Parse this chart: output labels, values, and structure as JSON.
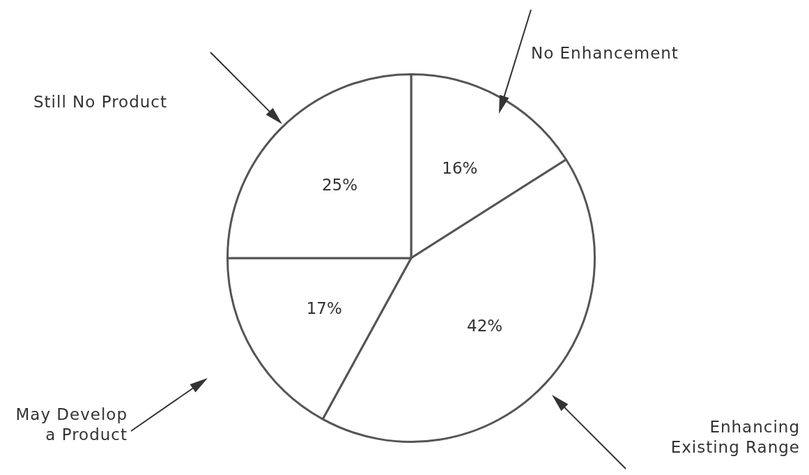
{
  "chart_data": {
    "type": "pie",
    "categories": [
      "No Enhancement",
      "Enhancing Existing Range",
      "May Develop a Product",
      "Still No Product"
    ],
    "values": [
      16,
      42,
      17,
      25
    ],
    "colors": [
      "#ffffff",
      "#ffffff",
      "#ffffff",
      "#ffffff"
    ],
    "value_labels": [
      "16%",
      "42%",
      "17%",
      "25%"
    ]
  }
}
